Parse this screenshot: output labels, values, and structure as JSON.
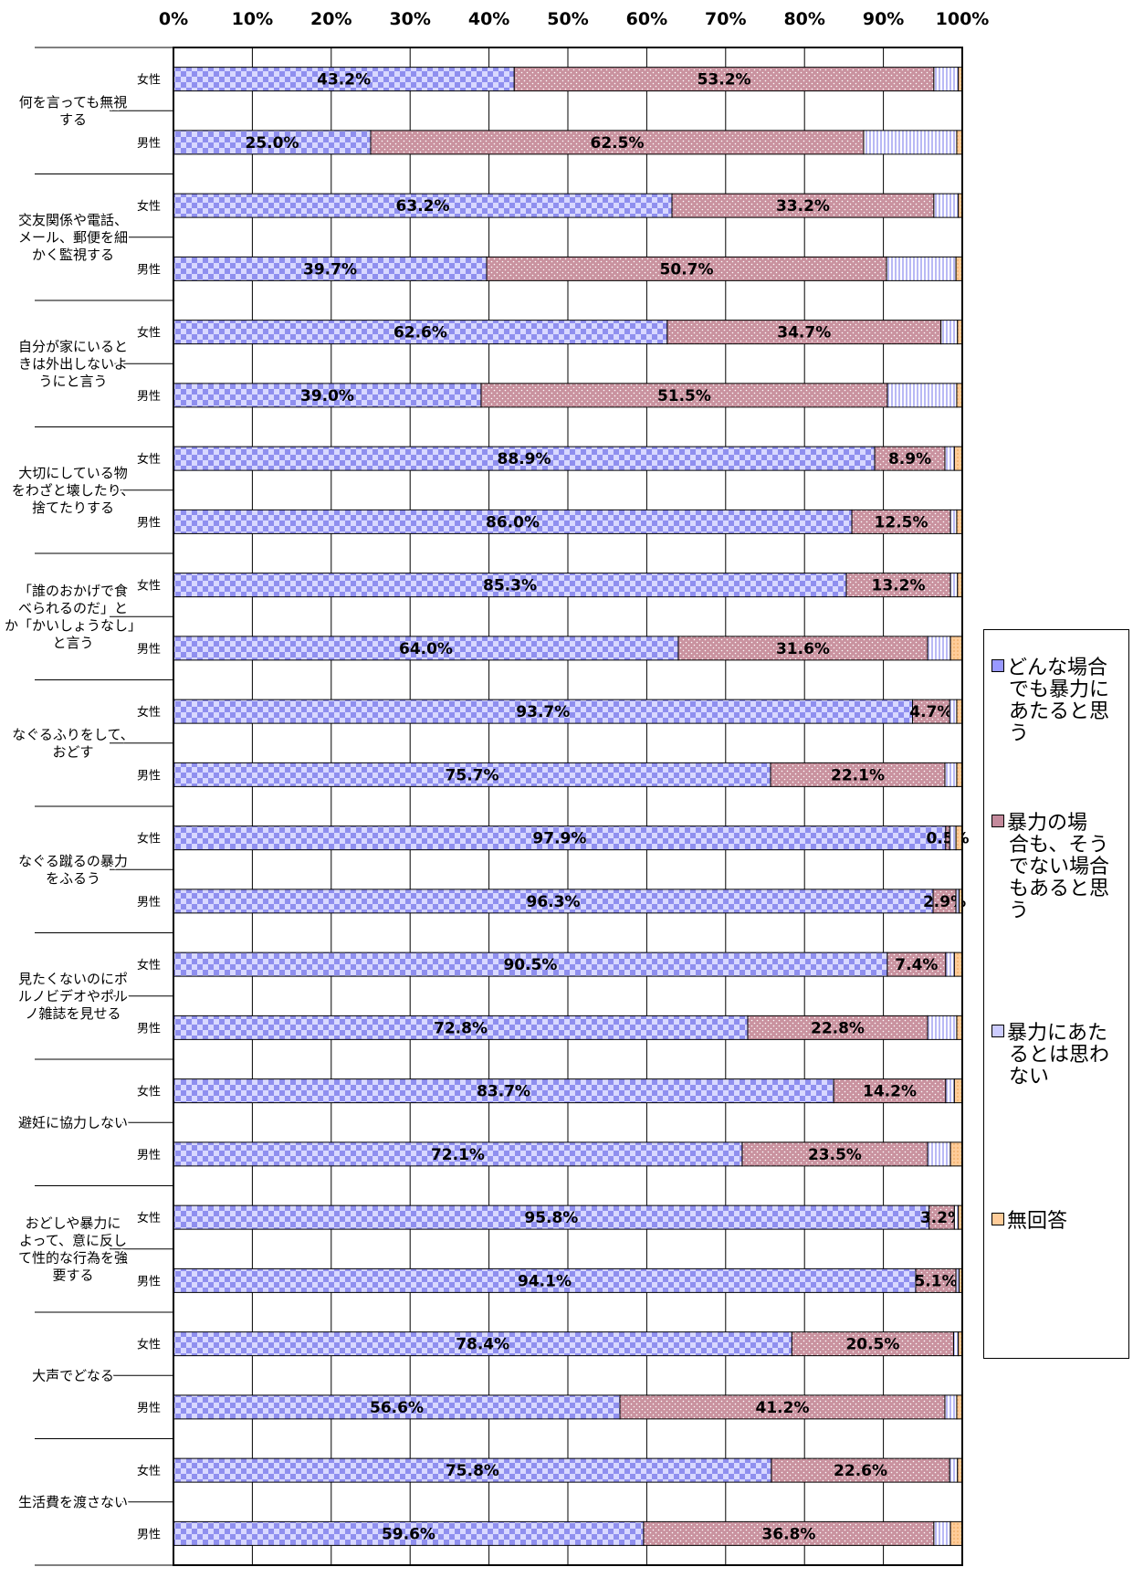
{
  "chart_data": {
    "type": "bar",
    "orientation": "horizontal",
    "stacked": true,
    "x_tick_labels": [
      "0%",
      "10%",
      "20%",
      "30%",
      "40%",
      "50%",
      "60%",
      "70%",
      "80%",
      "90%",
      "100%"
    ],
    "xlim": [
      0,
      100
    ],
    "grid": true,
    "legend_position": "right",
    "series": [
      {
        "name": "どんな場合でも暴力にあたると思う",
        "color": "#9999ff"
      },
      {
        "name": "暴力の場合も、そうでない場合もあると思う",
        "color": "#c48a9c"
      },
      {
        "name": "暴力にあたるとは思わない",
        "color": "#ccccff"
      },
      {
        "name": "無回答",
        "color": "#ffcc99"
      }
    ],
    "categories": [
      {
        "label": [
          "何を言っても無視",
          "する"
        ],
        "rows": [
          {
            "group": "女性",
            "values": [
              43.2,
              53.2,
              3.1,
              0.5
            ],
            "labels": [
              "43.2%",
              "53.2%",
              "",
              ""
            ]
          },
          {
            "group": "男性",
            "values": [
              25.0,
              62.5,
              11.8,
              0.7
            ],
            "labels": [
              "25.0%",
              "62.5%",
              "",
              ""
            ]
          }
        ]
      },
      {
        "label": [
          "交友関係や電話、",
          "メール、郵便を細",
          "かく監視する"
        ],
        "rows": [
          {
            "group": "女性",
            "values": [
              63.2,
              33.2,
              3.1,
              0.5
            ],
            "labels": [
              "63.2%",
              "33.2%",
              "",
              ""
            ]
          },
          {
            "group": "男性",
            "values": [
              39.7,
              50.7,
              8.8,
              0.8
            ],
            "labels": [
              "39.7%",
              "50.7%",
              "",
              ""
            ]
          }
        ]
      },
      {
        "label": [
          "自分が家にいると",
          "きは外出しないよ",
          "うにと言う"
        ],
        "rows": [
          {
            "group": "女性",
            "values": [
              62.6,
              34.7,
              2.1,
              0.6
            ],
            "labels": [
              "62.6%",
              "34.7%",
              "",
              ""
            ]
          },
          {
            "group": "男性",
            "values": [
              39.0,
              51.5,
              8.8,
              0.7
            ],
            "labels": [
              "39.0%",
              "51.5%",
              "",
              ""
            ]
          }
        ]
      },
      {
        "label": [
          "大切にしている物",
          "をわざと壊したり、",
          "捨てたりする"
        ],
        "rows": [
          {
            "group": "女性",
            "values": [
              88.9,
              8.9,
              1.2,
              1.0
            ],
            "labels": [
              "88.9%",
              "8.9%",
              "",
              ""
            ]
          },
          {
            "group": "男性",
            "values": [
              86.0,
              12.5,
              0.8,
              0.7
            ],
            "labels": [
              "86.0%",
              "12.5%",
              "",
              ""
            ]
          }
        ]
      },
      {
        "label": [
          "「誰のおかげで食",
          "べられるのだ」と",
          "か「かいしょうなし」",
          "と言う"
        ],
        "rows": [
          {
            "group": "女性",
            "values": [
              85.3,
              13.2,
              0.9,
              0.6
            ],
            "labels": [
              "85.3%",
              "13.2%",
              "",
              ""
            ]
          },
          {
            "group": "男性",
            "values": [
              64.0,
              31.6,
              2.9,
              1.5
            ],
            "labels": [
              "64.0%",
              "31.6%",
              "",
              ""
            ]
          }
        ]
      },
      {
        "label": [
          "なぐるふりをして、",
          "おどす"
        ],
        "rows": [
          {
            "group": "女性",
            "values": [
              93.7,
              4.7,
              0.9,
              0.7
            ],
            "labels": [
              "93.7%",
              "4.7%",
              "",
              ""
            ]
          },
          {
            "group": "男性",
            "values": [
              75.7,
              22.1,
              1.5,
              0.7
            ],
            "labels": [
              "75.7%",
              "22.1%",
              "",
              ""
            ]
          }
        ]
      },
      {
        "label": [
          "なぐる蹴るの暴力",
          "をふるう"
        ],
        "rows": [
          {
            "group": "女性",
            "values": [
              97.9,
              0.5,
              0.8,
              0.8
            ],
            "labels": [
              "97.9%",
              "0.5%",
              "",
              ""
            ]
          },
          {
            "group": "男性",
            "values": [
              96.3,
              2.9,
              0.4,
              0.4
            ],
            "labels": [
              "96.3%",
              "2.9%",
              "",
              ""
            ]
          }
        ]
      },
      {
        "label": [
          "見たくないのにポ",
          "ルノビデオやポル",
          "ノ雑誌を見せる"
        ],
        "rows": [
          {
            "group": "女性",
            "values": [
              90.5,
              7.4,
              1.1,
              1.0
            ],
            "labels": [
              "90.5%",
              "7.4%",
              "",
              ""
            ]
          },
          {
            "group": "男性",
            "values": [
              72.8,
              22.8,
              3.7,
              0.7
            ],
            "labels": [
              "72.8%",
              "22.8%",
              "",
              ""
            ]
          }
        ]
      },
      {
        "label": [
          "避妊に協力しない"
        ],
        "rows": [
          {
            "group": "女性",
            "values": [
              83.7,
              14.2,
              1.1,
              1.0
            ],
            "labels": [
              "83.7%",
              "14.2%",
              "",
              ""
            ]
          },
          {
            "group": "男性",
            "values": [
              72.1,
              23.5,
              2.9,
              1.5
            ],
            "labels": [
              "72.1%",
              "23.5%",
              "",
              ""
            ]
          }
        ]
      },
      {
        "label": [
          "おどしや暴力に",
          "よって、意に反し",
          "て性的な行為を強",
          "要する"
        ],
        "rows": [
          {
            "group": "女性",
            "values": [
              95.8,
              3.2,
              0.5,
              0.5
            ],
            "labels": [
              "95.8%",
              "3.2%",
              "",
              ""
            ]
          },
          {
            "group": "男性",
            "values": [
              94.1,
              5.1,
              0.4,
              0.4
            ],
            "labels": [
              "94.1%",
              "5.1%",
              "",
              ""
            ]
          }
        ]
      },
      {
        "label": [
          "大声でどなる"
        ],
        "rows": [
          {
            "group": "女性",
            "values": [
              78.4,
              20.5,
              0.6,
              0.5
            ],
            "labels": [
              "78.4%",
              "20.5%",
              "",
              ""
            ]
          },
          {
            "group": "男性",
            "values": [
              56.6,
              41.2,
              1.5,
              0.7
            ],
            "labels": [
              "56.6%",
              "41.2%",
              "",
              ""
            ]
          }
        ]
      },
      {
        "label": [
          "生活費を渡さない"
        ],
        "rows": [
          {
            "group": "女性",
            "values": [
              75.8,
              22.6,
              1.0,
              0.6
            ],
            "labels": [
              "75.8%",
              "22.6%",
              "",
              ""
            ]
          },
          {
            "group": "男性",
            "values": [
              59.6,
              36.8,
              2.1,
              1.5
            ],
            "labels": [
              "59.6%",
              "36.8%",
              "",
              ""
            ]
          }
        ]
      }
    ]
  },
  "legend": {
    "items": [
      {
        "lines": [
          "どんな場合",
          "でも暴力に",
          "あたると思",
          "う"
        ]
      },
      {
        "lines": [
          "暴力の場",
          "合も、そう",
          "でない場合",
          "もあると思",
          "う"
        ]
      },
      {
        "lines": [
          "暴力にあた",
          "るとは思わ",
          "ない"
        ]
      },
      {
        "lines": [
          "無回答"
        ]
      }
    ]
  }
}
